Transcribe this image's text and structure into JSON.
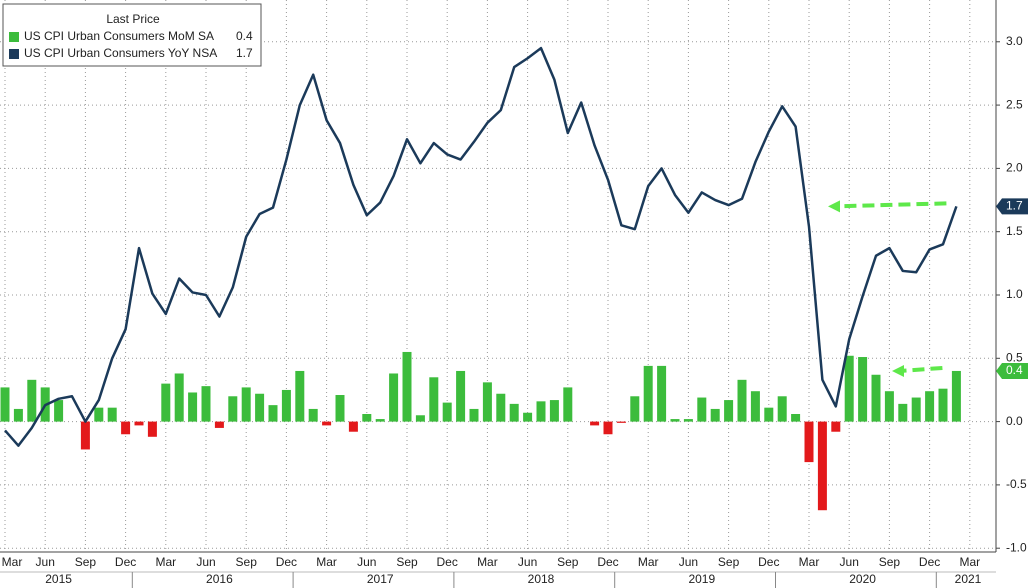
{
  "chart_data": {
    "type": "bar-line",
    "legend_title": "Last Price",
    "categories": [
      "Mar",
      null,
      null,
      "Jun",
      null,
      null,
      "Sep",
      null,
      null,
      "Dec",
      null,
      null,
      "Mar",
      null,
      null,
      "Jun",
      null,
      null,
      "Sep",
      null,
      null,
      "Dec",
      null,
      null,
      "Mar",
      null,
      null,
      "Jun",
      null,
      null,
      "Sep",
      null,
      null,
      "Dec",
      null,
      null,
      "Mar",
      null,
      null,
      "Jun",
      null,
      null,
      "Sep",
      null,
      null,
      "Dec",
      null,
      null,
      "Mar",
      null,
      null,
      "Jun",
      null,
      null,
      "Sep",
      null,
      null,
      "Dec",
      null,
      null,
      "Mar",
      null,
      null,
      "Jun",
      null,
      null,
      "Sep",
      null,
      null,
      "Dec",
      null,
      null,
      "Mar"
    ],
    "years": [
      "2015",
      "2016",
      "2017",
      "2018",
      "2019",
      "2020",
      "2021"
    ],
    "series": [
      {
        "name": "US CPI Urban Consumers MoM SA",
        "type": "bar",
        "color": "#3cbc3c",
        "negative_color": "#e3191b",
        "values": [
          0.27,
          0.1,
          0.33,
          0.27,
          0.17,
          0.0,
          -0.22,
          0.11,
          0.11,
          -0.1,
          -0.03,
          -0.12,
          0.3,
          0.38,
          0.23,
          0.28,
          -0.05,
          0.2,
          0.27,
          0.22,
          0.13,
          0.25,
          0.4,
          0.1,
          -0.03,
          0.21,
          -0.08,
          0.06,
          0.02,
          0.38,
          0.55,
          0.05,
          0.35,
          0.15,
          0.4,
          0.1,
          0.31,
          0.22,
          0.14,
          0.07,
          0.16,
          0.17,
          0.27,
          0.0,
          -0.03,
          -0.1,
          -0.01,
          0.2,
          0.44,
          0.44,
          0.02,
          0.02,
          0.19,
          0.1,
          0.17,
          0.33,
          0.24,
          0.11,
          0.2,
          0.06,
          -0.32,
          -0.7,
          -0.08,
          0.52,
          0.51,
          0.37,
          0.24,
          0.14,
          0.19,
          0.24,
          0.26,
          0.4,
          null
        ]
      },
      {
        "name": "US CPI Urban Consumers YoY NSA",
        "type": "line",
        "color": "#1b3a5a",
        "values": [
          -0.07,
          -0.19,
          -0.05,
          0.13,
          0.18,
          0.2,
          0.0,
          0.17,
          0.5,
          0.73,
          1.37,
          1.01,
          0.85,
          1.13,
          1.02,
          1.0,
          0.83,
          1.06,
          1.46,
          1.64,
          1.69,
          2.07,
          2.5,
          2.74,
          2.38,
          2.2,
          1.87,
          1.63,
          1.73,
          1.94,
          2.23,
          2.04,
          2.2,
          2.11,
          2.07,
          2.21,
          2.36,
          2.46,
          2.8,
          2.87,
          2.95,
          2.7,
          2.28,
          2.52,
          2.18,
          1.91,
          1.55,
          1.52,
          1.86,
          2.0,
          1.79,
          1.65,
          1.81,
          1.75,
          1.71,
          1.76,
          2.05,
          2.29,
          2.49,
          2.33,
          1.54,
          0.33,
          0.12,
          0.65,
          0.99,
          1.31,
          1.37,
          1.19,
          1.18,
          1.36,
          1.4,
          1.7,
          null
        ]
      }
    ],
    "ylim": [
      -1.03,
      3.33
    ],
    "yticks": [
      {
        "value": -1.0,
        "label": "-1.0"
      },
      -0.5,
      {
        "value": 0.0,
        "label": "0.0"
      },
      0.5,
      {
        "value": 1.0,
        "label": "1.0"
      },
      1.5,
      {
        "value": 2.0,
        "label": "2.0"
      },
      2.5,
      {
        "value": 3.0,
        "label": "3.0"
      }
    ],
    "grid": true
  }
}
